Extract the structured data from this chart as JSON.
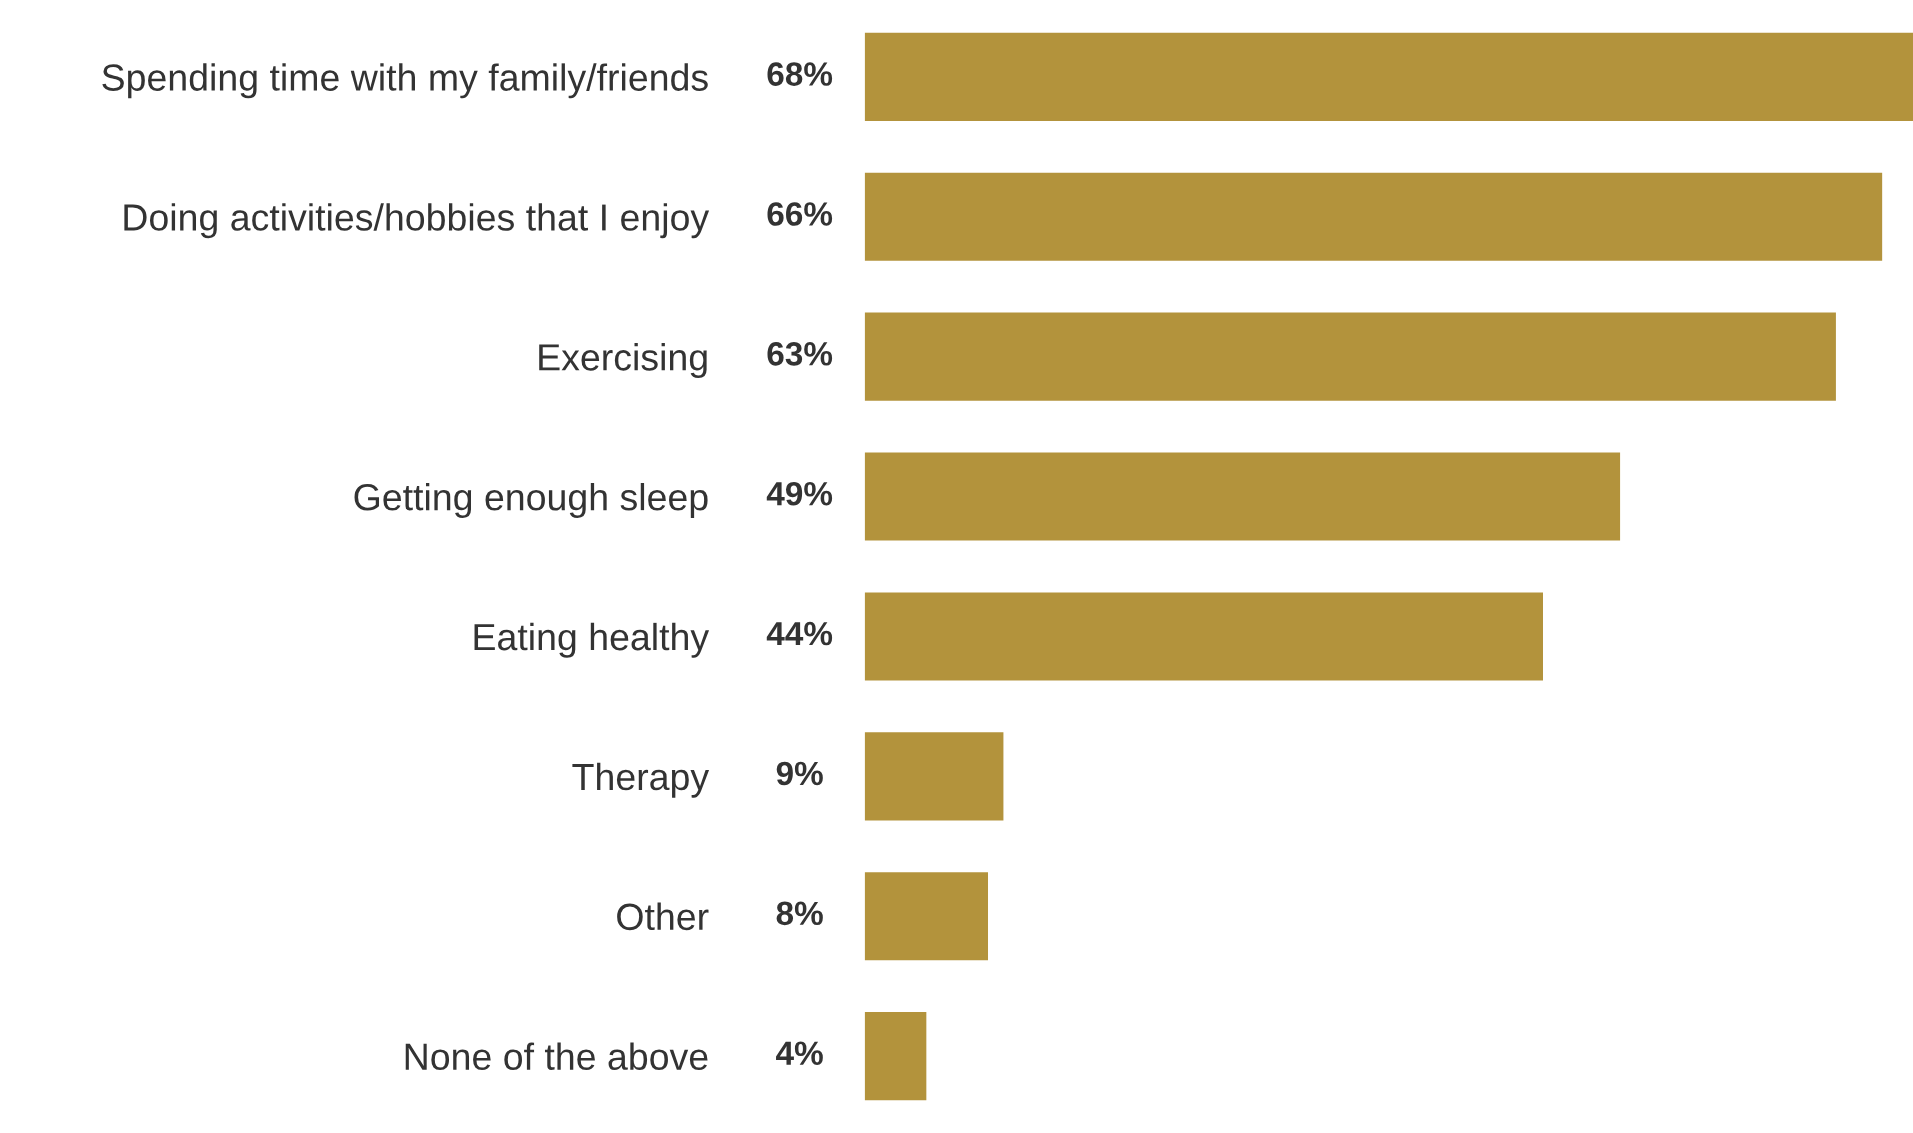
{
  "chart_data": {
    "type": "bar",
    "orientation": "horizontal",
    "categories": [
      "Spending time with my family/friends",
      "Doing activities/hobbies that I enjoy",
      "Exercising",
      "Getting enough sleep",
      "Eating healthy",
      "Therapy",
      "Other",
      "None of the above"
    ],
    "values": [
      68,
      66,
      63,
      49,
      44,
      9,
      8,
      4
    ],
    "value_labels": [
      "68%",
      "66%",
      "63%",
      "49%",
      "44%",
      "9%",
      "8%",
      "4%"
    ],
    "color": "#b3933c",
    "grid": false,
    "legend": false
  }
}
